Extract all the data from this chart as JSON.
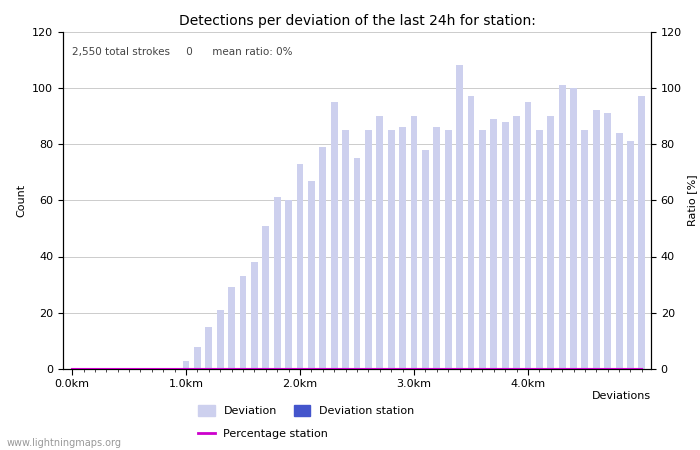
{
  "title": "Detections per deviation of the last 24h for station:",
  "annotation": "2,550 total strokes     0      mean ratio: 0%",
  "xlabel": "Deviations",
  "ylabel_left": "Count",
  "ylabel_right": "Ratio [%]",
  "watermark": "www.lightningmaps.org",
  "ylim": [
    0,
    120
  ],
  "xtick_labels": [
    "0.0km",
    "1.0km",
    "2.0km",
    "3.0km",
    "4.0km"
  ],
  "xtick_positions": [
    0,
    10,
    20,
    30,
    40
  ],
  "bar_width": 0.6,
  "deviation_bar_color": "#cdd0ee",
  "deviation_station_bar_color": "#4455cc",
  "percentage_line_color": "#cc00cc",
  "bar_values": [
    0,
    0,
    0,
    0,
    0,
    0,
    0,
    0,
    0,
    0,
    3,
    8,
    15,
    21,
    29,
    33,
    38,
    51,
    61,
    60,
    73,
    67,
    79,
    95,
    85,
    75,
    85,
    90,
    85,
    86,
    90,
    78,
    86,
    85,
    108,
    97,
    85,
    89,
    88,
    90,
    95,
    85,
    90,
    101,
    100,
    85,
    92,
    91,
    84,
    81,
    97
  ],
  "station_bar_values": [
    0,
    0,
    0,
    0,
    0,
    0,
    0,
    0,
    0,
    0,
    0,
    0,
    0,
    0,
    0,
    0,
    0,
    0,
    0,
    0,
    0,
    0,
    0,
    0,
    0,
    0,
    0,
    0,
    0,
    0,
    0,
    0,
    0,
    0,
    0,
    0,
    0,
    0,
    0,
    0,
    0,
    0,
    0,
    0,
    0,
    0,
    0,
    0,
    0,
    0,
    0
  ],
  "percentage_values": [
    0,
    0,
    0,
    0,
    0,
    0,
    0,
    0,
    0,
    0,
    0,
    0,
    0,
    0,
    0,
    0,
    0,
    0,
    0,
    0,
    0,
    0,
    0,
    0,
    0,
    0,
    0,
    0,
    0,
    0,
    0,
    0,
    0,
    0,
    0,
    0,
    0,
    0,
    0,
    0,
    0,
    0,
    0,
    0,
    0,
    0,
    0,
    0,
    0,
    0,
    0
  ],
  "n_bars": 51,
  "legend_deviation_label": "Deviation",
  "legend_station_label": "Deviation station",
  "legend_percentage_label": "Percentage station",
  "title_fontsize": 10,
  "axis_fontsize": 8,
  "tick_fontsize": 8,
  "annotation_fontsize": 7.5,
  "grid_color": "#cccccc",
  "background_color": "#ffffff"
}
